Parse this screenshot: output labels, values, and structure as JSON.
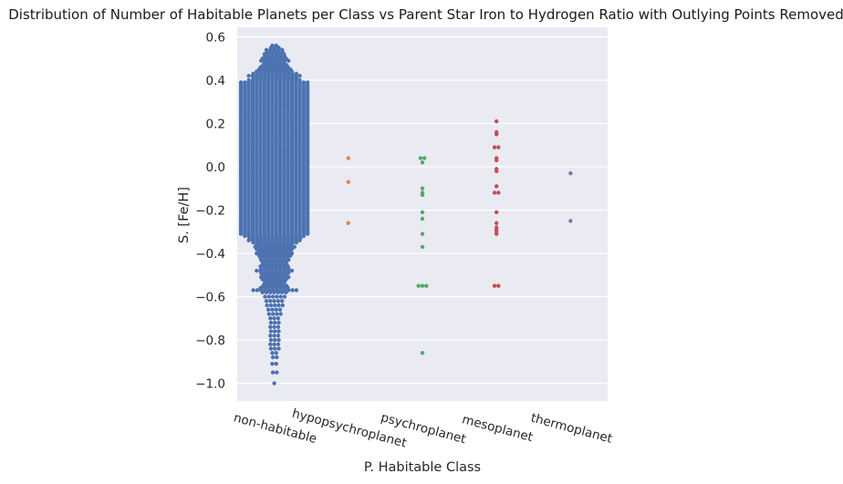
{
  "chart_data": {
    "type": "scatter",
    "subtype": "swarm",
    "title": "Distribution of Number of Habitable Planets per Class vs Parent Star Iron to Hydrogen Ratio with Outlying Points Removed",
    "xlabel": "P. Habitable Class",
    "ylabel": "S. [Fe/H]",
    "categories": [
      "non-habitable",
      "hypopsychroplanet",
      "psychroplanet",
      "mesoplanet",
      "thermoplanet"
    ],
    "ylim": [
      -1.08,
      0.66
    ],
    "yticks": [
      "0.6",
      "0.4",
      "0.2",
      "0.0",
      "−0.2",
      "−0.4",
      "−0.6",
      "−0.8",
      "−1.0"
    ],
    "ytick_values": [
      0.6,
      0.4,
      0.2,
      0.0,
      -0.2,
      -0.4,
      -0.6,
      -0.8,
      -1.0
    ],
    "grid": true,
    "background": "#eaeaf2",
    "series": [
      {
        "category": "non-habitable",
        "color": "#4c72b0",
        "description_values": "dense distribution",
        "values": [
          0.56,
          0.55,
          0.54,
          0.53,
          0.52,
          0.51,
          0.5,
          0.49,
          0.48,
          0.47,
          0.46,
          0.45,
          0.44,
          0.43,
          0.42,
          0.41,
          0.4,
          0.39,
          0.38,
          0.37,
          0.36,
          0.35,
          0.34,
          0.33,
          0.32,
          0.31,
          0.3,
          0.29,
          0.28,
          0.27,
          0.26,
          0.25,
          0.24,
          0.23,
          0.22,
          0.21,
          0.2,
          0.19,
          0.18,
          0.17,
          0.16,
          0.15,
          0.14,
          0.13,
          0.12,
          0.11,
          0.1,
          0.09,
          0.08,
          0.07,
          0.06,
          0.05,
          0.04,
          0.03,
          0.02,
          0.01,
          0.0,
          -0.01,
          -0.02,
          -0.03,
          -0.04,
          -0.05,
          -0.06,
          -0.07,
          -0.08,
          -0.09,
          -0.1,
          -0.11,
          -0.12,
          -0.13,
          -0.14,
          -0.15,
          -0.16,
          -0.17,
          -0.18,
          -0.19,
          -0.2,
          -0.21,
          -0.22,
          -0.23,
          -0.24,
          -0.25,
          -0.26,
          -0.27,
          -0.28,
          -0.29,
          -0.3,
          -0.31,
          -0.32,
          -0.33,
          -0.34,
          -0.35,
          -0.36,
          -0.37,
          -0.38,
          -0.39,
          -0.4,
          -0.41,
          -0.42,
          -0.43,
          -0.44,
          -0.45,
          -0.46,
          -0.47,
          -0.48,
          -0.49,
          -0.5,
          -0.51,
          -0.52,
          -0.53,
          -0.54,
          -0.55,
          -0.56,
          -0.57,
          -0.58,
          -0.6,
          -0.62,
          -0.64,
          -0.66,
          -0.68,
          -0.7,
          -0.72,
          -0.74,
          -0.76,
          -0.78,
          -0.8,
          -0.82,
          -0.84,
          -0.86,
          -0.88,
          -0.91,
          -0.95,
          -1.0
        ],
        "counts": [
          2,
          3,
          5,
          5,
          6,
          6,
          7,
          8,
          6,
          7,
          8,
          9,
          10,
          12,
          14,
          12,
          14,
          18,
          18,
          18,
          18,
          18,
          18,
          18,
          18,
          18,
          18,
          18,
          18,
          18,
          18,
          18,
          18,
          18,
          18,
          18,
          18,
          18,
          18,
          18,
          18,
          18,
          18,
          18,
          18,
          18,
          18,
          18,
          18,
          18,
          18,
          18,
          18,
          18,
          18,
          18,
          18,
          18,
          18,
          18,
          18,
          18,
          18,
          18,
          18,
          18,
          18,
          18,
          18,
          18,
          18,
          18,
          18,
          18,
          18,
          18,
          18,
          18,
          18,
          18,
          18,
          18,
          18,
          18,
          18,
          18,
          18,
          18,
          16,
          14,
          14,
          12,
          10,
          11,
          10,
          9,
          10,
          9,
          8,
          8,
          7,
          7,
          8,
          8,
          10,
          8,
          7,
          8,
          7,
          6,
          6,
          7,
          8,
          12,
          7,
          6,
          5,
          5,
          4,
          4,
          3,
          3,
          3,
          3,
          3,
          3,
          3,
          3,
          2,
          2,
          2,
          2,
          1,
          1,
          2
        ]
      },
      {
        "category": "hypopsychroplanet",
        "color": "#dd8452",
        "values": [
          0.04,
          -0.07,
          -0.26
        ]
      },
      {
        "category": "psychroplanet",
        "color": "#55a868",
        "values": [
          0.04,
          0.04,
          0.02,
          -0.1,
          -0.12,
          -0.13,
          -0.21,
          -0.24,
          -0.31,
          -0.37,
          -0.55,
          -0.55,
          -0.55,
          -0.86
        ]
      },
      {
        "category": "mesoplanet",
        "color": "#c44e52",
        "values": [
          0.21,
          0.16,
          0.15,
          0.09,
          0.09,
          0.04,
          0.03,
          -0.01,
          -0.02,
          -0.09,
          -0.12,
          -0.12,
          -0.21,
          -0.26,
          -0.28,
          -0.29,
          -0.3,
          -0.31,
          -0.55,
          -0.55
        ]
      },
      {
        "category": "thermoplanet",
        "color": "#8172b3",
        "values": [
          -0.03,
          -0.25
        ]
      }
    ]
  }
}
